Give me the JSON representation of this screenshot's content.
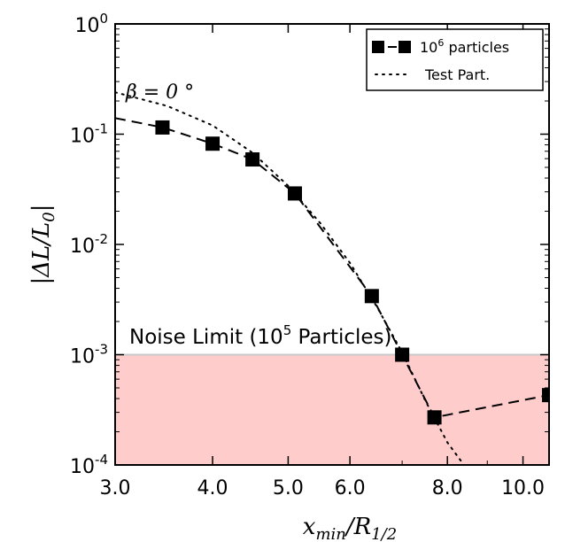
{
  "chart_data": {
    "type": "line",
    "xlabel": "x_min/R_1/2",
    "ylabel": "|ΔL/L_0|",
    "xscale": "log",
    "yscale": "log",
    "xlim": [
      3.0,
      10.8
    ],
    "ylim": [
      0.0001,
      1
    ],
    "grid": false,
    "legend_position": "top-right",
    "xticks": [
      3.0,
      4.0,
      5.0,
      6.0,
      8.0,
      10.0
    ],
    "xtick_labels": [
      "3.0",
      "4.0",
      "5.0",
      "6.0",
      "8.0",
      "10.0"
    ],
    "yticks": [
      0.0001,
      0.001,
      0.01,
      0.1,
      1
    ],
    "ytick_labels": [
      {
        "base": "10",
        "exp": "-4"
      },
      {
        "base": "10",
        "exp": "-3"
      },
      {
        "base": "10",
        "exp": "-2"
      },
      {
        "base": "10",
        "exp": "-1"
      },
      {
        "base": "10",
        "exp": "0"
      }
    ],
    "series": [
      {
        "name": "10^6 particles",
        "name_base": "10",
        "name_exp": "6",
        "name_suffix": " particles",
        "style": "dashed-square-markers",
        "color": "#000000",
        "points": [
          {
            "x": 3.0,
            "y": 0.14,
            "marker": false
          },
          {
            "x": 3.45,
            "y": 0.115,
            "marker": true
          },
          {
            "x": 4.0,
            "y": 0.082,
            "marker": true
          },
          {
            "x": 4.5,
            "y": 0.059,
            "marker": true
          },
          {
            "x": 5.1,
            "y": 0.029,
            "marker": true
          },
          {
            "x": 6.4,
            "y": 0.0034,
            "marker": true
          },
          {
            "x": 7.0,
            "y": 0.001,
            "marker": true
          },
          {
            "x": 7.7,
            "y": 0.00027,
            "marker": true
          },
          {
            "x": 10.8,
            "y": 0.00043,
            "marker": true
          }
        ]
      },
      {
        "name": "Test Part.",
        "style": "dotted",
        "color": "#000000",
        "points": [
          {
            "x": 3.0,
            "y": 0.24
          },
          {
            "x": 3.5,
            "y": 0.18
          },
          {
            "x": 4.0,
            "y": 0.12
          },
          {
            "x": 4.5,
            "y": 0.068
          },
          {
            "x": 5.0,
            "y": 0.034
          },
          {
            "x": 5.5,
            "y": 0.0155
          },
          {
            "x": 6.0,
            "y": 0.0068
          },
          {
            "x": 6.5,
            "y": 0.0027
          },
          {
            "x": 7.0,
            "y": 0.00105
          },
          {
            "x": 7.5,
            "y": 0.00038
          },
          {
            "x": 8.0,
            "y": 0.00016
          },
          {
            "x": 8.4,
            "y": 0.0001
          }
        ]
      }
    ],
    "shaded_region": {
      "label": "Noise Limit",
      "ymin": 0.0001,
      "ymax": 0.001,
      "fill": "#ffcccc",
      "edge": "#c8c8c8"
    },
    "annotations": {
      "beta_text": "β = 0 °",
      "noise_prefix": "Noise Limit (",
      "noise_base": "10",
      "noise_exp": "5",
      "noise_suffix": " Particles)"
    }
  }
}
